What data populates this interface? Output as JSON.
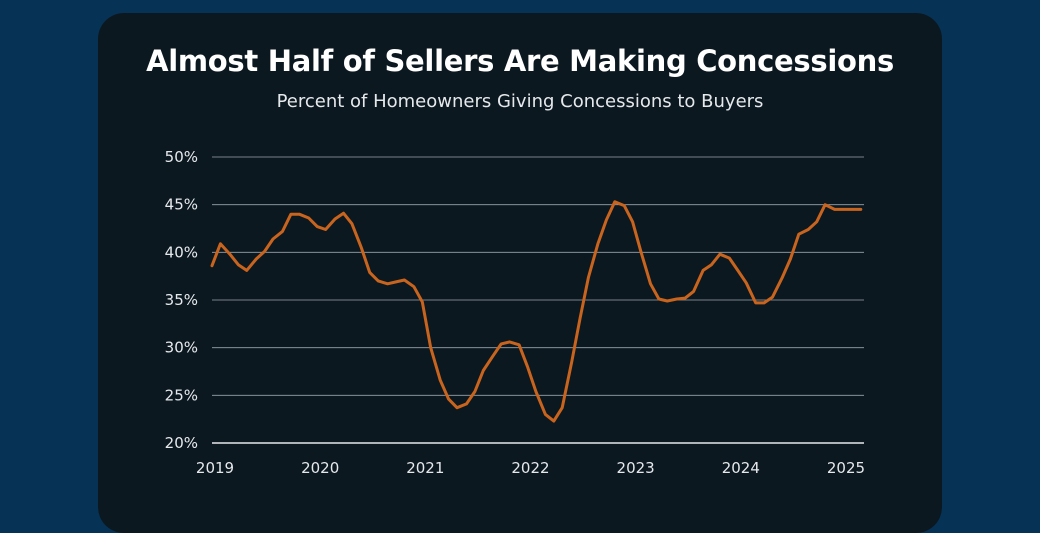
{
  "chart_data": {
    "type": "line",
    "title": "Almost Half of Sellers Are Making Concessions",
    "subtitle": "Percent of Homeowners Giving Concessions to Buyers",
    "xlabel": "",
    "ylabel": "",
    "ylim": [
      20,
      50
    ],
    "yticks": [
      "20%",
      "25%",
      "30%",
      "35%",
      "40%",
      "45%",
      "50%"
    ],
    "xticks": [
      "2019",
      "2020",
      "2021",
      "2022",
      "2023",
      "2024",
      "2025"
    ],
    "xlim": [
      2019,
      2025.2
    ],
    "grid": true,
    "line_color": "#c8641e",
    "series": [
      {
        "name": "Percent of Homeowners Giving Concessions",
        "x": [
          2019.0,
          2019.08,
          2019.17,
          2019.25,
          2019.33,
          2019.42,
          2019.5,
          2019.58,
          2019.67,
          2019.75,
          2019.83,
          2019.92,
          2020.0,
          2020.08,
          2020.17,
          2020.25,
          2020.33,
          2020.42,
          2020.5,
          2020.58,
          2020.67,
          2020.75,
          2020.83,
          2020.92,
          2021.0,
          2021.08,
          2021.17,
          2021.25,
          2021.33,
          2021.42,
          2021.5,
          2021.58,
          2021.67,
          2021.75,
          2021.83,
          2021.92,
          2022.0,
          2022.08,
          2022.17,
          2022.25,
          2022.33,
          2022.42,
          2022.5,
          2022.58,
          2022.67,
          2022.75,
          2022.83,
          2022.92,
          2023.0,
          2023.08,
          2023.17,
          2023.25,
          2023.33,
          2023.42,
          2023.5,
          2023.58,
          2023.67,
          2023.75,
          2023.83,
          2023.92,
          2024.0,
          2024.08,
          2024.17,
          2024.25,
          2024.33,
          2024.42,
          2024.5,
          2024.58,
          2024.67,
          2024.75,
          2024.83,
          2024.92,
          2025.0,
          2025.08,
          2025.17
        ],
        "values": [
          38.6,
          40.9,
          39.8,
          38.7,
          38.1,
          39.3,
          40.1,
          41.4,
          42.2,
          44.0,
          44.0,
          43.6,
          42.7,
          42.4,
          43.5,
          44.1,
          43.0,
          40.5,
          37.9,
          37.0,
          36.7,
          36.9,
          37.1,
          36.4,
          34.8,
          30.0,
          26.6,
          24.6,
          23.7,
          24.1,
          25.4,
          27.6,
          29.1,
          30.4,
          30.6,
          30.3,
          28.0,
          25.4,
          23.0,
          22.3,
          23.7,
          28.5,
          33.1,
          37.4,
          40.9,
          43.4,
          45.3,
          44.9,
          43.2,
          40.0,
          36.7,
          35.1,
          34.9,
          35.1,
          35.2,
          35.9,
          38.1,
          38.7,
          39.8,
          39.4,
          38.1,
          36.8,
          34.7,
          34.7,
          35.3,
          37.3,
          39.3,
          41.9,
          42.4,
          43.2,
          45.0,
          44.5,
          44.5,
          44.5,
          44.5
        ]
      }
    ]
  }
}
